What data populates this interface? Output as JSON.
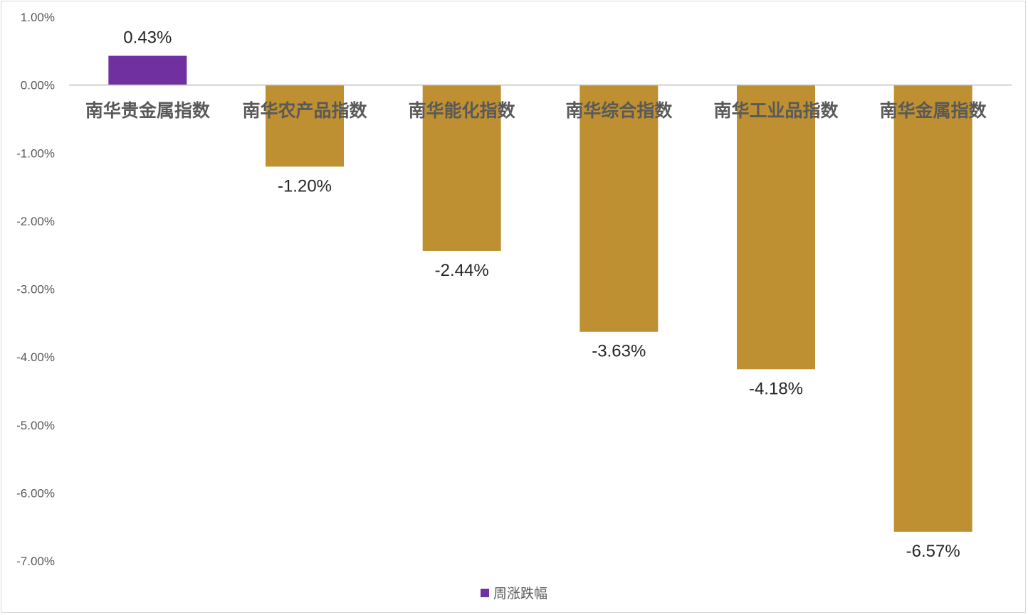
{
  "chart_data": {
    "type": "bar",
    "categories": [
      "南华贵金属指数",
      "南华农产品指数",
      "南华能化指数",
      "南华综合指数",
      "南华工业品指数",
      "南华金属指数"
    ],
    "series": [
      {
        "name": "周涨跌幅",
        "values": [
          0.43,
          -1.2,
          -2.44,
          -3.63,
          -4.18,
          -6.57
        ]
      }
    ],
    "data_labels": [
      "0.43%",
      "-1.20%",
      "-2.44%",
      "-3.63%",
      "-4.18%",
      "-6.57%"
    ],
    "ylim": [
      -7,
      1
    ],
    "yticks": [
      1,
      0,
      -1,
      -2,
      -3,
      -4,
      -5,
      -6,
      -7
    ],
    "ytick_labels": [
      "1.00%",
      "0.00%",
      "-1.00%",
      "-2.00%",
      "-3.00%",
      "-4.00%",
      "-5.00%",
      "-6.00%",
      "-7.00%"
    ],
    "bar_colors": [
      "#7030a0",
      "#bf9032",
      "#bf9032",
      "#bf9032",
      "#bf9032",
      "#bf9032"
    ],
    "legend_color": "#7030a0",
    "legend_position": "bottom",
    "grid": false
  }
}
